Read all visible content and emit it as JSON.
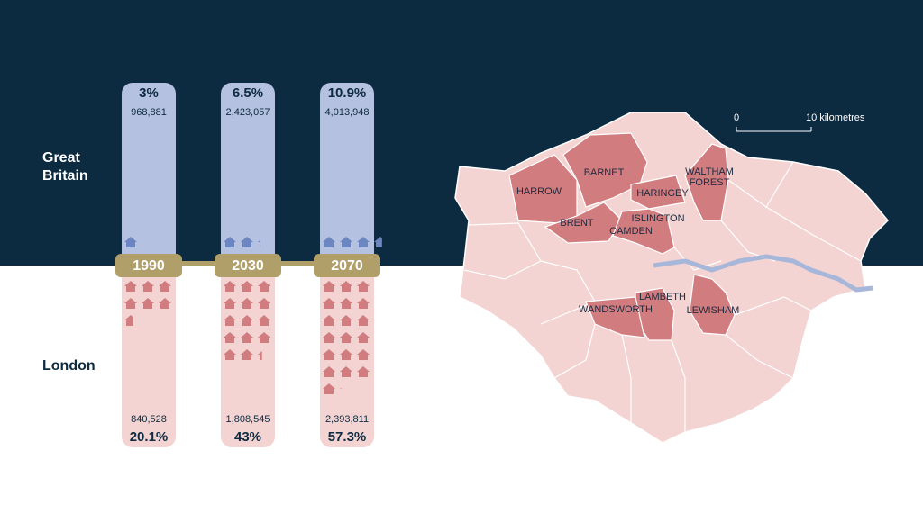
{
  "years": [
    "1990",
    "2030",
    "2070"
  ],
  "regions": [
    {
      "name": "Great Britain",
      "values": [
        3,
        6.5,
        10.9
      ],
      "value_labels": [
        "3%",
        "6.5%",
        "10.9%"
      ],
      "counts": [
        "968,881",
        "2,423,057",
        "4,013,948"
      ]
    },
    {
      "name": "London",
      "values": [
        20.1,
        43,
        57.3
      ],
      "value_labels": [
        "20.1%",
        "43%",
        "57.3%"
      ],
      "counts": [
        "840,528",
        "1,808,545",
        "2,393,811"
      ]
    }
  ],
  "map": {
    "scale_labels": [
      "0",
      "10 kilometres"
    ],
    "boroughs": [
      "HARROW",
      "BARNET",
      "HARINGEY",
      "WALTHAM FOREST",
      "BRENT",
      "ISLINGTON",
      "CAMDEN",
      "LAMBETH",
      "WANDSWORTH",
      "LEWISHAM"
    ]
  }
}
